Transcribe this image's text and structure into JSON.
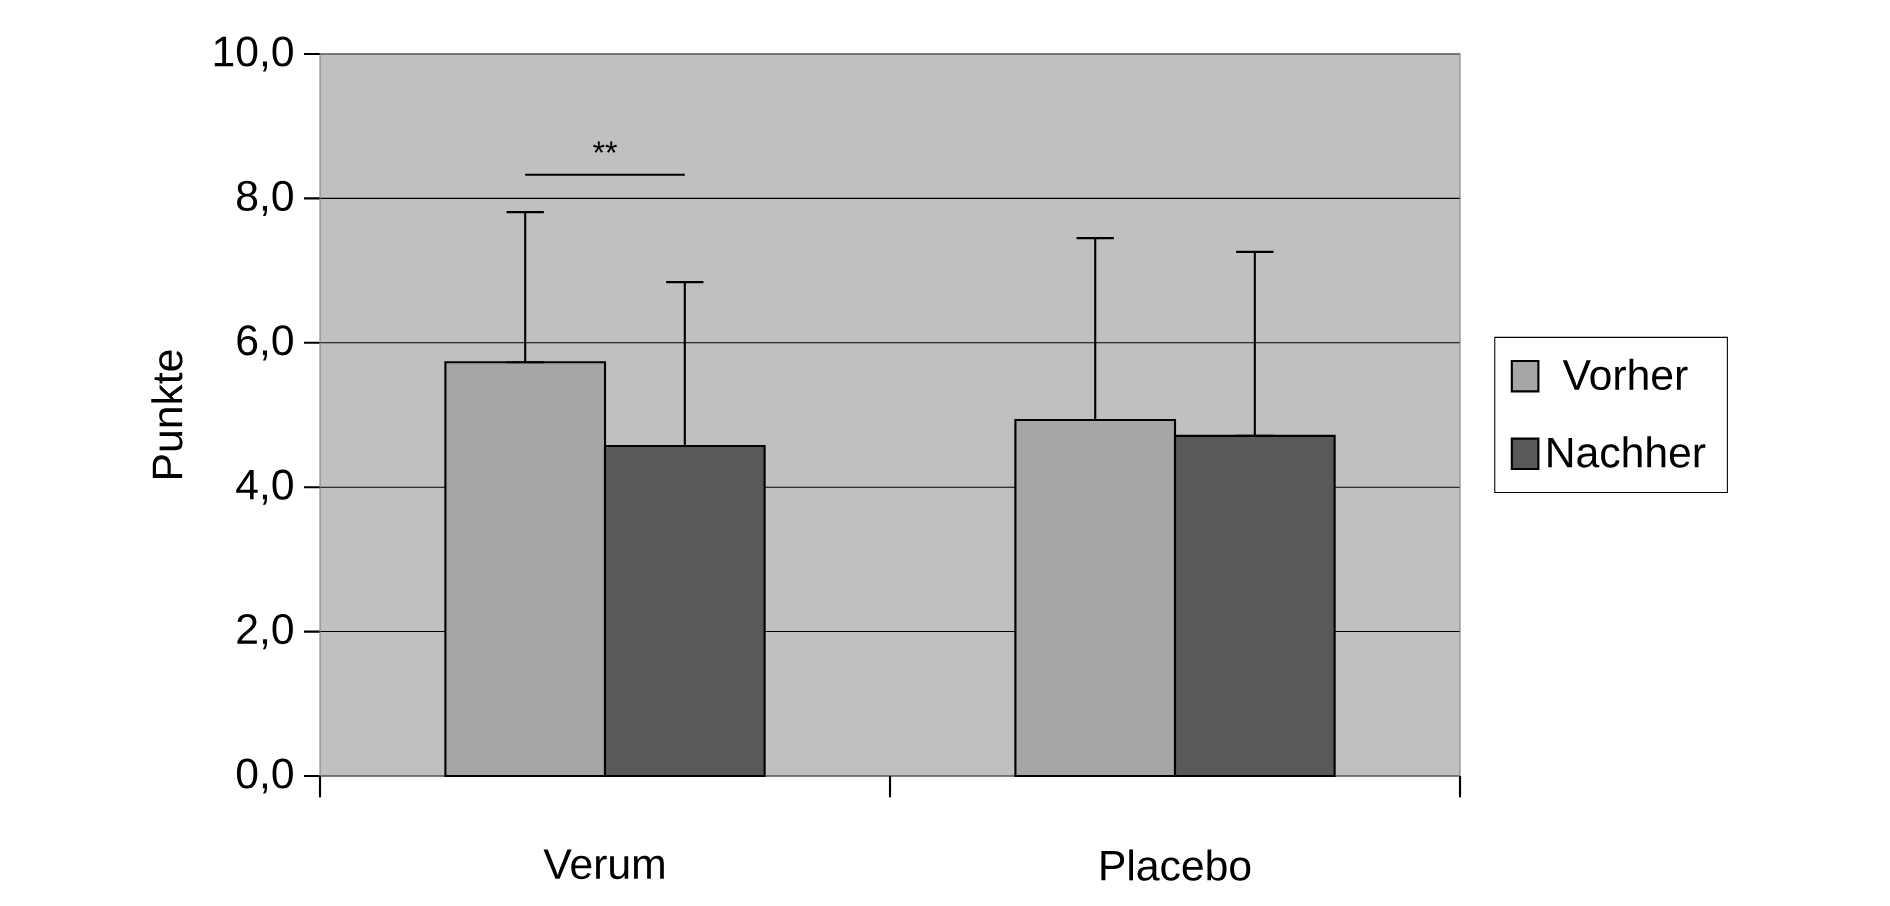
{
  "chart_data": {
    "type": "bar",
    "ylabel": "Punkte",
    "categories": [
      "Verum",
      "Placebo"
    ],
    "series": [
      {
        "name": "Vorher",
        "color": "#a6a6a6",
        "values": [
          5.73,
          4.93
        ],
        "errors": [
          [
            5.73,
            7.81
          ],
          [
            4.93,
            7.45
          ]
        ]
      },
      {
        "name": "Nachher",
        "color": "#595959",
        "values": [
          4.57,
          4.71
        ],
        "errors": [
          [
            4.57,
            6.84
          ],
          [
            4.71,
            7.26
          ]
        ]
      }
    ],
    "ylim": [
      0,
      10
    ],
    "yticks": [
      {
        "value": 0,
        "label": "0,0"
      },
      {
        "value": 2,
        "label": "2,0"
      },
      {
        "value": 4,
        "label": "4,0"
      },
      {
        "value": 6,
        "label": "6,0"
      },
      {
        "value": 8,
        "label": "8,0"
      },
      {
        "value": 10,
        "label": "10,0"
      }
    ],
    "grid": "y",
    "legend": "right",
    "annotations": [
      "**"
    ]
  }
}
